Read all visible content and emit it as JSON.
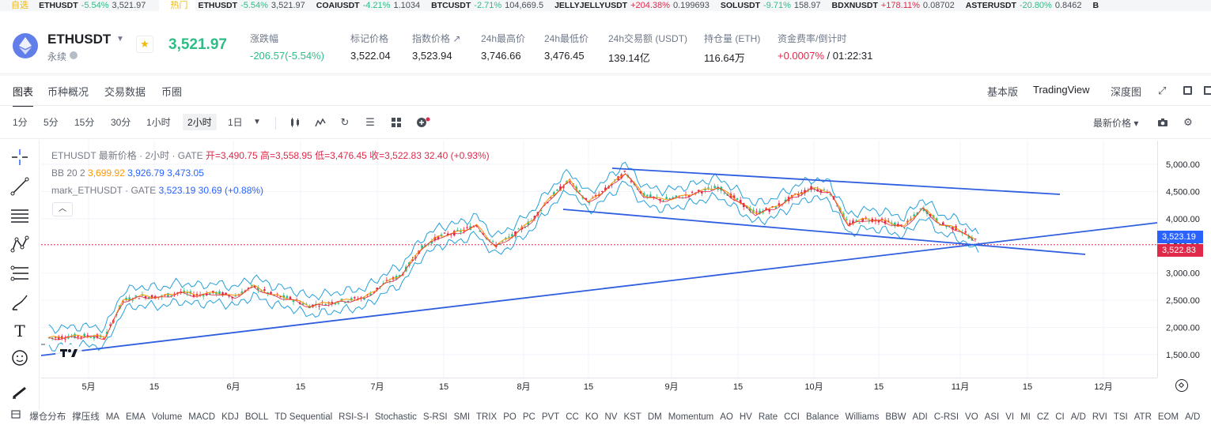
{
  "ticker": {
    "fav_label": "自选",
    "hot_label": "热门",
    "fav_items": [
      {
        "sym": "ETHUSDT",
        "chg": "-5.54%",
        "px": "3,521.97",
        "dir": "down"
      }
    ],
    "hot_items": [
      {
        "sym": "ETHUSDT",
        "chg": "-5.54%",
        "px": "3,521.97",
        "dir": "down"
      },
      {
        "sym": "COAIUSDT",
        "chg": "-4.21%",
        "px": "1.1034",
        "dir": "down"
      },
      {
        "sym": "BTCUSDT",
        "chg": "-2.71%",
        "px": "104,669.5",
        "dir": "down"
      },
      {
        "sym": "JELLYJELLYUSDT",
        "chg": "+204.38%",
        "px": "0.199693",
        "dir": "up"
      },
      {
        "sym": "SOLUSDT",
        "chg": "-9.71%",
        "px": "158.97",
        "dir": "down"
      },
      {
        "sym": "BDXNUSDT",
        "chg": "+178.11%",
        "px": "0.08702",
        "dir": "up"
      },
      {
        "sym": "ASTERUSDT",
        "chg": "-20.80%",
        "px": "0.8462",
        "dir": "down"
      },
      {
        "sym": "B",
        "chg": "",
        "px": "",
        "dir": "down"
      }
    ]
  },
  "header": {
    "symbol": "ETHUSDT",
    "contract_type": "永续",
    "last_price": "3,521.97",
    "stats": [
      {
        "label": "涨跌幅",
        "value": "-206.57(-5.54%)",
        "color": "down"
      },
      {
        "label": "标记价格",
        "value": "3,522.04",
        "color": ""
      },
      {
        "label": "指数价格 ↗",
        "value": "3,523.94",
        "color": ""
      },
      {
        "label": "24h最高价",
        "value": "3,746.66",
        "color": ""
      },
      {
        "label": "24h最低价",
        "value": "3,476.45",
        "color": ""
      },
      {
        "label": "24h交易额 (USDT)",
        "value": "139.14亿",
        "color": ""
      },
      {
        "label": "持仓量 (ETH)",
        "value": "116.64万",
        "color": ""
      },
      {
        "label": "资金费率/倒计时",
        "value": "+0.0007%",
        "value2": " / 01:22:31",
        "color": "up"
      }
    ]
  },
  "tabs": {
    "items": [
      "图表",
      "币种概况",
      "交易数据",
      "币圈"
    ],
    "active": 0,
    "views": [
      "基本版",
      "TradingView",
      "深度图"
    ],
    "active_view": 1
  },
  "timeframes": {
    "items": [
      "1分",
      "5分",
      "15分",
      "30分",
      "1小时",
      "2小时",
      "1日"
    ],
    "active": "2小时",
    "price_type": "最新价格"
  },
  "legend": {
    "main_title": "ETHUSDT 最新价格 · 2小时 · GATE",
    "open": "开=3,490.75",
    "high": "高=3,558.95",
    "low": "低=3,476.45",
    "close": "收=3,522.83",
    "change": "32.40 (+0.93%)",
    "bb_label": "BB 20 2",
    "bb_mid": "3,699.92",
    "bb_upper": "3,926.79",
    "bb_lower": "3,473.05",
    "mark_title": "mark_ETHUSDT · GATE",
    "mark_val": "3,523.19",
    "mark_chg": "30.69 (+0.88%)"
  },
  "price_axis": {
    "ticks": [
      "5,000.00",
      "4,500.00",
      "4,000.00",
      "3,500.00",
      "3,000.00",
      "2,500.00",
      "2,000.00",
      "1,500.00"
    ],
    "tag_mark": "3,523.19",
    "tag_last": "3,522.83"
  },
  "time_axis": {
    "ticks": [
      "5月",
      "15",
      "6月",
      "15",
      "7月",
      "15",
      "8月",
      "15",
      "9月",
      "15",
      "10月",
      "15",
      "11月",
      "15",
      "12月"
    ]
  },
  "indicators": [
    "爆仓分布",
    "撑压线",
    "MA",
    "EMA",
    "Volume",
    "MACD",
    "KDJ",
    "BOLL",
    "TD Sequential",
    "RSI-S-I",
    "Stochastic",
    "S-RSI",
    "SMI",
    "TRIX",
    "PO",
    "PC",
    "PVT",
    "CC",
    "KO",
    "NV",
    "KST",
    "DM",
    "Momentum",
    "AO",
    "HV",
    "Rate",
    "CCI",
    "Balance",
    "Williams",
    "BBW",
    "ADI",
    "C-RSI",
    "VO",
    "ASI",
    "VI",
    "MI",
    "CZ",
    "CI",
    "A/D",
    "RVI",
    "TSI",
    "ATR",
    "EOM",
    "A/D"
  ],
  "colors": {
    "up": "#e0294a",
    "down": "#2ebd85",
    "trendline": "#2f5fe0",
    "bb_band": "#26a0da",
    "tag_mark": "#2962ff",
    "tag_last": "#e0294a"
  },
  "chart_data": {
    "type": "line",
    "x": [
      "04-27",
      "05-01",
      "05-05",
      "05-09",
      "05-13",
      "05-17",
      "05-21",
      "05-25",
      "05-29",
      "06-02",
      "06-06",
      "06-10",
      "06-14",
      "06-18",
      "06-22",
      "06-26",
      "06-30",
      "07-04",
      "07-08",
      "07-12",
      "07-16",
      "07-20",
      "07-24",
      "07-28",
      "08-01",
      "08-05",
      "08-09",
      "08-13",
      "08-17",
      "08-21",
      "08-25",
      "08-29",
      "09-02",
      "09-06",
      "09-10",
      "09-14",
      "09-18",
      "09-22",
      "09-26",
      "09-30",
      "10-04",
      "10-08",
      "10-10",
      "10-12",
      "10-16",
      "10-20",
      "10-24",
      "10-28",
      "11-01",
      "11-04",
      "11-07"
    ],
    "series": [
      {
        "values": [
          1810,
          1830,
          1850,
          1820,
          2500,
          2580,
          2560,
          2650,
          2600,
          2640,
          2570,
          2760,
          2600,
          2530,
          2400,
          2450,
          2500,
          2550,
          2800,
          2980,
          3450,
          3680,
          3750,
          3880,
          3500,
          3700,
          3980,
          4400,
          4700,
          4300,
          4550,
          4850,
          4430,
          4350,
          4400,
          4500,
          4580,
          4350,
          4100,
          4200,
          4400,
          4560,
          4500,
          3900,
          4000,
          3950,
          3850,
          4200,
          3900,
          3800,
          3550
        ]
      }
    ],
    "ylim": [
      1400,
      5200
    ]
  }
}
